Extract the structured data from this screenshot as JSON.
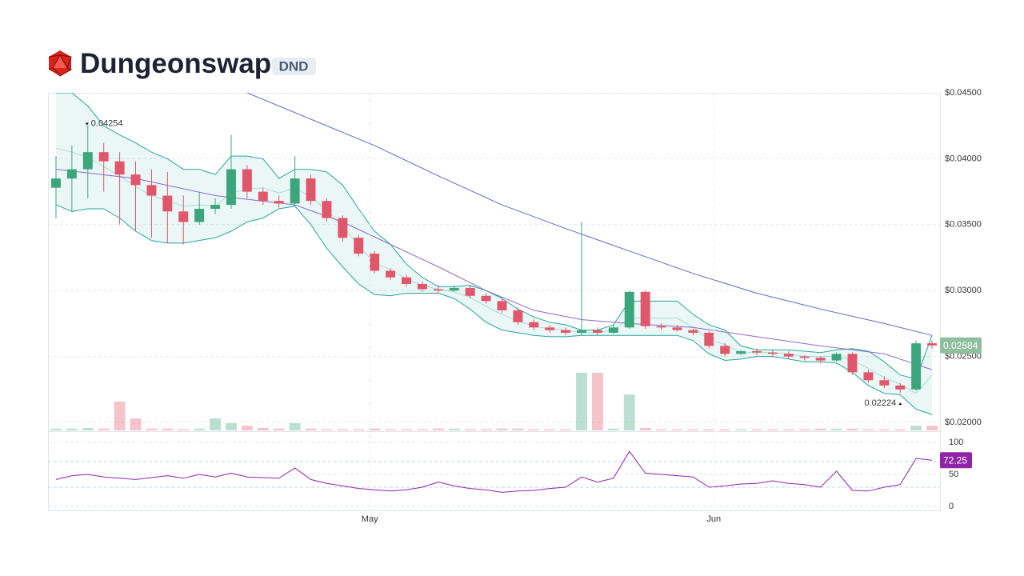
{
  "chart_data": [
    {
      "type": "candlestick",
      "title": "Dungeonswap",
      "subtitle": "DND",
      "open": [
        0.0378,
        0.0385,
        0.0392,
        0.0405,
        0.0398,
        0.0388,
        0.038,
        0.0372,
        0.036,
        0.0352,
        0.0362,
        0.0365,
        0.0392,
        0.0375,
        0.0368,
        0.0366,
        0.0385,
        0.0368,
        0.0355,
        0.034,
        0.0328,
        0.0315,
        0.031,
        0.0305,
        0.0301,
        0.03,
        0.0302,
        0.0296,
        0.0292,
        0.0285,
        0.0276,
        0.0272,
        0.027,
        0.0268,
        0.027,
        0.0268,
        0.0272,
        0.0299,
        0.0273,
        0.0272,
        0.027,
        0.0268,
        0.0258,
        0.0252,
        0.0254,
        0.0253,
        0.0252,
        0.025,
        0.0249,
        0.0247,
        0.0252,
        0.0238,
        0.0232,
        0.0228,
        0.0225,
        0.026
      ],
      "high": [
        0.0402,
        0.041,
        0.04254,
        0.0412,
        0.0405,
        0.0398,
        0.0392,
        0.039,
        0.0372,
        0.0375,
        0.037,
        0.0418,
        0.0395,
        0.0378,
        0.0372,
        0.0402,
        0.0388,
        0.037,
        0.0357,
        0.0342,
        0.033,
        0.0317,
        0.0312,
        0.0307,
        0.0304,
        0.0304,
        0.0304,
        0.0298,
        0.0294,
        0.0287,
        0.0278,
        0.0274,
        0.0272,
        0.0352,
        0.0272,
        0.0274,
        0.03,
        0.03,
        0.0275,
        0.0274,
        0.0271,
        0.0269,
        0.026,
        0.0255,
        0.0256,
        0.0255,
        0.0254,
        0.0251,
        0.025,
        0.0253,
        0.0253,
        0.024,
        0.0235,
        0.023,
        0.0262,
        0.0262
      ],
      "low": [
        0.0355,
        0.036,
        0.037,
        0.0375,
        0.035,
        0.0345,
        0.034,
        0.0336,
        0.0335,
        0.035,
        0.0358,
        0.0362,
        0.037,
        0.0365,
        0.0363,
        0.0364,
        0.0365,
        0.0352,
        0.0337,
        0.0326,
        0.0313,
        0.0308,
        0.0303,
        0.0299,
        0.0298,
        0.0299,
        0.0294,
        0.029,
        0.0283,
        0.0274,
        0.027,
        0.0268,
        0.0266,
        0.0266,
        0.0266,
        0.0267,
        0.0271,
        0.0271,
        0.027,
        0.0269,
        0.0266,
        0.0256,
        0.025,
        0.0251,
        0.0251,
        0.025,
        0.0248,
        0.0247,
        0.0245,
        0.0246,
        0.0236,
        0.023,
        0.0226,
        0.02224,
        0.0224,
        0.0256
      ],
      "close": [
        0.0385,
        0.0392,
        0.0405,
        0.0398,
        0.0388,
        0.038,
        0.0372,
        0.036,
        0.0352,
        0.0362,
        0.0365,
        0.0392,
        0.0375,
        0.0368,
        0.0366,
        0.0385,
        0.0368,
        0.0355,
        0.034,
        0.0328,
        0.0315,
        0.031,
        0.0305,
        0.0301,
        0.03,
        0.0302,
        0.0296,
        0.0292,
        0.0285,
        0.0276,
        0.0272,
        0.027,
        0.0268,
        0.027,
        0.0268,
        0.0272,
        0.0299,
        0.0273,
        0.0272,
        0.027,
        0.0268,
        0.0258,
        0.0252,
        0.0254,
        0.0253,
        0.0252,
        0.025,
        0.0249,
        0.0247,
        0.0252,
        0.0238,
        0.0232,
        0.0228,
        0.0225,
        0.026,
        0.02584
      ],
      "colors": {
        "up": "#3da57b",
        "down": "#e0566a"
      },
      "xlim": [
        0,
        56
      ],
      "xticks": [
        {
          "value": 20.2,
          "label": "May"
        },
        {
          "value": 41.8,
          "label": "Jun"
        }
      ],
      "ylim": [
        0.02,
        0.045
      ],
      "yticks": [
        {
          "value": 0.02,
          "label": "$0.02000"
        },
        {
          "value": 0.025,
          "label": "$0.02500"
        },
        {
          "value": 0.03,
          "label": "$0.03000"
        },
        {
          "value": 0.035,
          "label": "$0.03500"
        },
        {
          "value": 0.04,
          "label": "$0.04000"
        },
        {
          "value": 0.045,
          "label": "$0.04500"
        }
      ],
      "grid": true,
      "bollinger": {
        "color": "#26a69a",
        "upper": [
          0.045,
          0.045,
          0.044,
          0.0425,
          0.0418,
          0.0412,
          0.0405,
          0.04,
          0.0392,
          0.0392,
          0.0388,
          0.0402,
          0.0402,
          0.04,
          0.0385,
          0.0392,
          0.0392,
          0.039,
          0.038,
          0.0362,
          0.0345,
          0.0335,
          0.032,
          0.031,
          0.0303,
          0.0303,
          0.0304,
          0.03,
          0.0294,
          0.0286,
          0.028,
          0.0276,
          0.0274,
          0.027,
          0.027,
          0.0274,
          0.0292,
          0.0292,
          0.0292,
          0.0292,
          0.0282,
          0.0274,
          0.027,
          0.0258,
          0.0255,
          0.0255,
          0.0255,
          0.0254,
          0.0253,
          0.0255,
          0.0256,
          0.0254,
          0.0246,
          0.0236,
          0.0233,
          0.0266
        ],
        "middle": [
          0.0408,
          0.0405,
          0.0401,
          0.0394,
          0.0387,
          0.0379,
          0.0372,
          0.0368,
          0.0364,
          0.0365,
          0.0364,
          0.0374,
          0.0377,
          0.0378,
          0.0374,
          0.0378,
          0.0371,
          0.0361,
          0.0349,
          0.0334,
          0.0321,
          0.0316,
          0.0309,
          0.0304,
          0.0301,
          0.0299,
          0.0295,
          0.0288,
          0.0282,
          0.0277,
          0.0273,
          0.0271,
          0.027,
          0.0268,
          0.0268,
          0.027,
          0.0279,
          0.0279,
          0.0279,
          0.0279,
          0.0272,
          0.0263,
          0.0259,
          0.0253,
          0.0253,
          0.0253,
          0.0252,
          0.025,
          0.025,
          0.025,
          0.0247,
          0.0241,
          0.0234,
          0.0229,
          0.0222,
          0.0236
        ],
        "lower": [
          0.0365,
          0.036,
          0.0362,
          0.0362,
          0.0355,
          0.0345,
          0.0338,
          0.0336,
          0.0336,
          0.0338,
          0.034,
          0.0345,
          0.0352,
          0.0355,
          0.0362,
          0.0364,
          0.035,
          0.0332,
          0.0318,
          0.0305,
          0.0297,
          0.0296,
          0.0298,
          0.0298,
          0.0298,
          0.0294,
          0.0286,
          0.0276,
          0.027,
          0.0268,
          0.0266,
          0.0265,
          0.0265,
          0.0266,
          0.0266,
          0.0266,
          0.0266,
          0.0266,
          0.0266,
          0.0266,
          0.0262,
          0.0252,
          0.0247,
          0.0248,
          0.025,
          0.025,
          0.0248,
          0.0246,
          0.0246,
          0.0245,
          0.0238,
          0.0228,
          0.0222,
          0.0221,
          0.021,
          0.0206
        ]
      },
      "moving_averages": [
        {
          "color": "#8a6cc9",
          "x": [
            0,
            5,
            10,
            15,
            18,
            21,
            24,
            27,
            30,
            33,
            36,
            40,
            44,
            48,
            52,
            55
          ],
          "values": [
            0.0392,
            0.0385,
            0.0372,
            0.0365,
            0.0352,
            0.0335,
            0.0318,
            0.03,
            0.0285,
            0.0278,
            0.0275,
            0.0272,
            0.0265,
            0.0258,
            0.0252,
            0.024
          ]
        },
        {
          "color": "#5c6bc0",
          "x": [
            12,
            16,
            20,
            24,
            28,
            32,
            36,
            40,
            44,
            48,
            52,
            55
          ],
          "values": [
            0.045,
            0.043,
            0.041,
            0.0387,
            0.0365,
            0.0347,
            0.033,
            0.0313,
            0.0298,
            0.0286,
            0.0275,
            0.0266
          ]
        }
      ],
      "volume": {
        "ylim": [
          0,
          100
        ],
        "values": [
          3,
          3,
          4,
          3,
          48,
          20,
          3,
          3,
          2,
          3,
          20,
          12,
          8,
          4,
          3,
          12,
          3,
          2,
          2,
          2,
          3,
          2,
          2,
          2,
          3,
          3,
          2,
          2,
          3,
          3,
          2,
          2,
          2,
          96,
          96,
          3,
          60,
          4,
          2,
          2,
          2,
          2,
          2,
          2,
          2,
          2,
          2,
          2,
          3,
          3,
          3,
          2,
          2,
          2,
          8,
          8
        ]
      }
    },
    {
      "type": "line",
      "color": "#9024a8",
      "xlim": [
        0,
        56
      ],
      "ylim": [
        0,
        100
      ],
      "yticks": [
        0,
        50,
        100
      ],
      "bands": [
        30,
        70
      ],
      "values": [
        42,
        48,
        50,
        46,
        44,
        42,
        45,
        48,
        44,
        50,
        46,
        52,
        46,
        45,
        44,
        60,
        42,
        36,
        32,
        28,
        26,
        24,
        26,
        30,
        38,
        32,
        28,
        26,
        22,
        24,
        25,
        28,
        30,
        46,
        38,
        44,
        86,
        52,
        50,
        48,
        46,
        30,
        32,
        35,
        36,
        40,
        36,
        34,
        30,
        55,
        25,
        24,
        30,
        34,
        75,
        72.25
      ]
    }
  ]
}
